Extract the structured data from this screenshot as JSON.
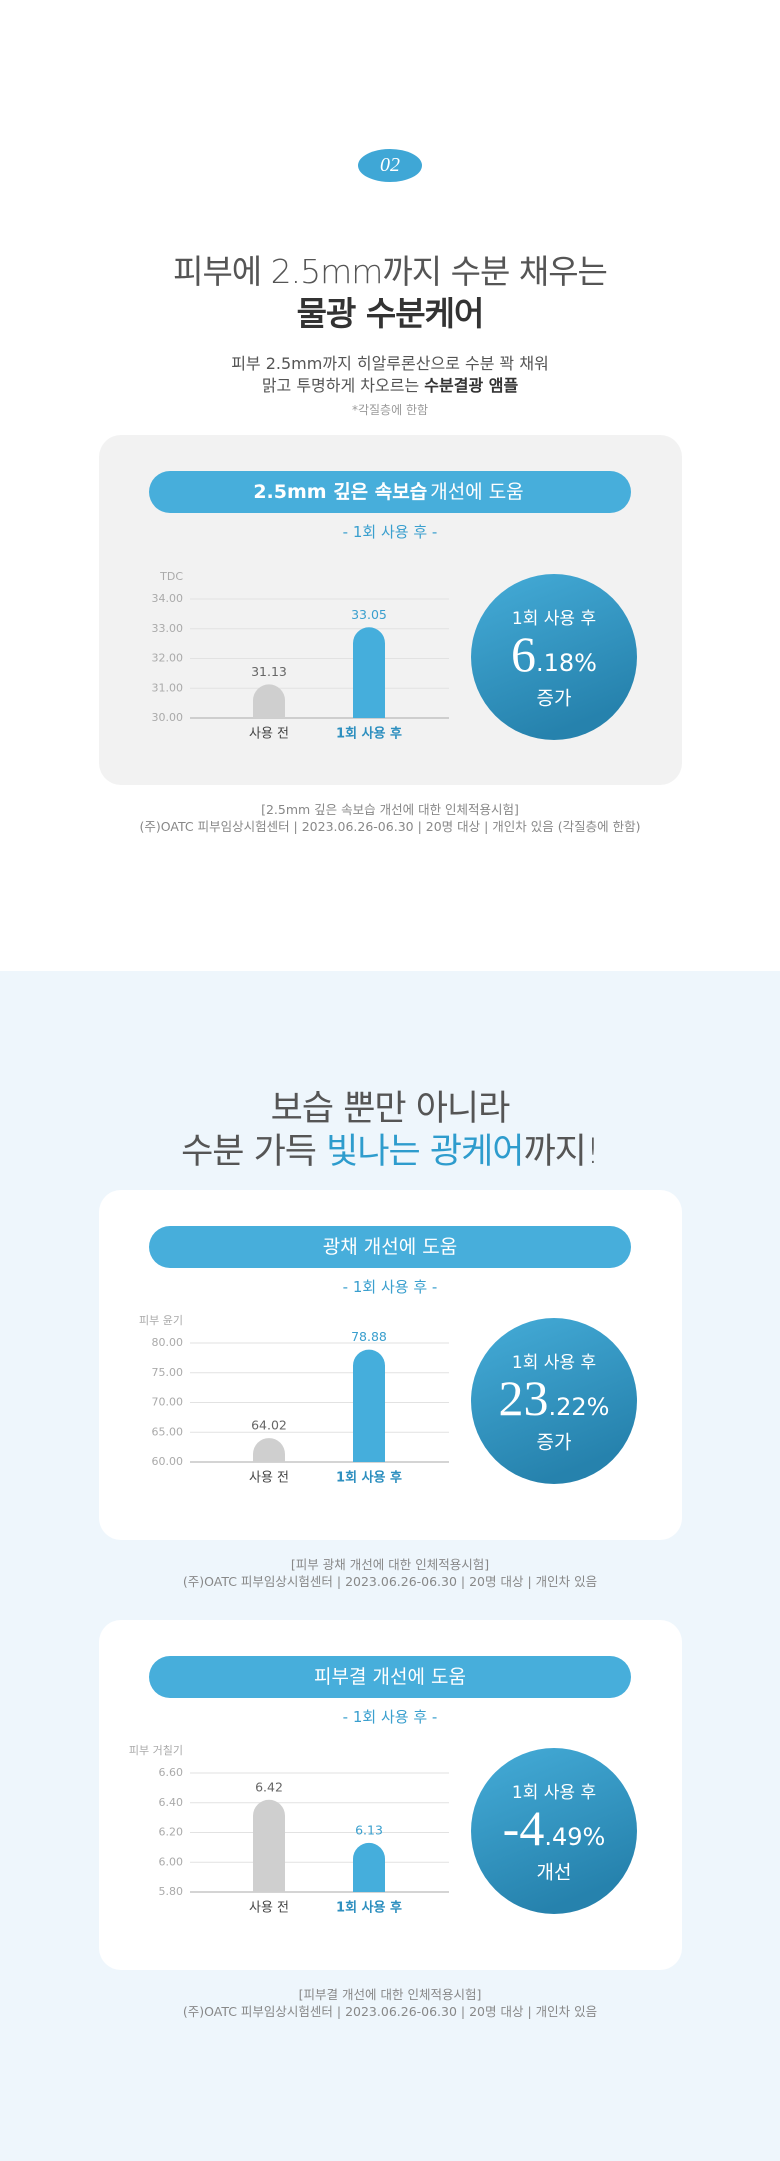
{
  "badge": "02",
  "section1": {
    "title_line1": "피부에 2.5mm까지 수분 채우는",
    "title_line2": "물광 수분케어",
    "desc_line1": "피부 2.5mm까지 히알루론산으로 수분 꽉 채워",
    "desc_line2": "맑고 투명하게 차오르는",
    "desc_line2_bold": "수분결광 앰플",
    "note": "*각질층에 한함"
  },
  "section2": {
    "title_line1": "보습 뿐만 아니라",
    "title_line2_start": "수분 가득",
    "title_line2_bold": "빛나는 광케어",
    "title_line2_end": "까지!"
  },
  "chart_data": [
    {
      "type": "bar",
      "title_bold": "2.5mm 깊은 속보습",
      "title": "개선에 도움",
      "subtitle": "- 1회 사용 후 -",
      "y_label": "TDC",
      "categories": [
        "사용 전",
        "1회 사용 후"
      ],
      "values": [
        31.13,
        33.05
      ],
      "colors": [
        "#cfcfcf",
        "#45aedc"
      ],
      "ylim": [
        30,
        34
      ],
      "yticks": [
        {
          "value": 30,
          "label": "30.00"
        },
        {
          "value": 31,
          "label": "31.00"
        },
        {
          "value": 32,
          "label": "32.00"
        },
        {
          "value": 33,
          "label": "33.00"
        },
        {
          "value": 34,
          "label": "34.00"
        }
      ],
      "grid": true,
      "result": {
        "label": "1회 사용 후",
        "main": "6",
        "decimal": ".18%",
        "word": "증가"
      },
      "footnote_line1": "[2.5mm 깊은 속보습 개선에 대한 인체적용시험]",
      "footnote_line2": "(주)OATC 피부임상시험센터 | 2023.06.26-06.30 | 20명 대상 | 개인차 있음 (각질층에 한함)"
    },
    {
      "type": "bar",
      "title": "광채 개선에 도움",
      "subtitle": "- 1회 사용 후 -",
      "y_label": "피부 윤기",
      "categories": [
        "사용 전",
        "1회 사용 후"
      ],
      "values": [
        64.02,
        78.88
      ],
      "colors": [
        "#cfcfcf",
        "#45aedc"
      ],
      "ylim": [
        60,
        80
      ],
      "yticks": [
        {
          "value": 60,
          "label": "60.00"
        },
        {
          "value": 65,
          "label": "65.00"
        },
        {
          "value": 70,
          "label": "70.00"
        },
        {
          "value": 75,
          "label": "75.00"
        },
        {
          "value": 80,
          "label": "80.00"
        }
      ],
      "grid": true,
      "result": {
        "label": "1회 사용 후",
        "main": "23",
        "decimal": ".22%",
        "word": "증가"
      },
      "footnote_line1": "[피부 광채 개선에 대한 인체적용시험]",
      "footnote_line2": "(주)OATC 피부임상시험센터 | 2023.06.26-06.30 | 20명 대상 | 개인차 있음"
    },
    {
      "type": "bar",
      "title": "피부결 개선에 도움",
      "subtitle": "- 1회 사용 후 -",
      "y_label": "피부 거칠기",
      "categories": [
        "사용 전",
        "1회 사용 후"
      ],
      "values": [
        6.42,
        6.13
      ],
      "colors": [
        "#cfcfcf",
        "#45aedc"
      ],
      "ylim": [
        5.8,
        6.6
      ],
      "yticks": [
        {
          "value": 5.8,
          "label": "5.80"
        },
        {
          "value": 6.0,
          "label": "6.00"
        },
        {
          "value": 6.2,
          "label": "6.20"
        },
        {
          "value": 6.4,
          "label": "6.40"
        },
        {
          "value": 6.6,
          "label": "6.60"
        }
      ],
      "grid": true,
      "result": {
        "label": "1회 사용 후",
        "main": "-4",
        "decimal": ".49%",
        "word": "개선"
      },
      "footnote_line1": "[피부결 개선에 대한 인체적용시험]",
      "footnote_line2": "(주)OATC 피부임상시험센터 | 2023.06.26-06.30 | 20명 대상 | 개인차 있음"
    }
  ]
}
